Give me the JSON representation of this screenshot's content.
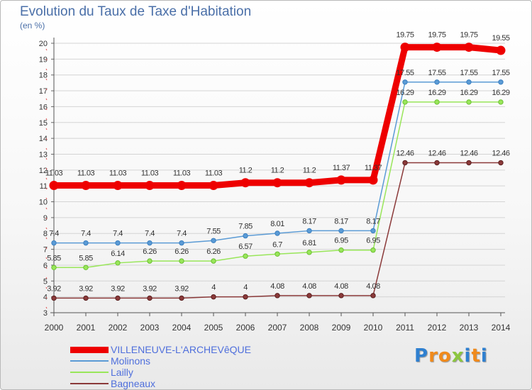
{
  "chart_data": {
    "type": "line",
    "title": "Evolution du Taux de Taxe d'Habitation",
    "ylabel": "(en %)",
    "x": [
      "2000",
      "2001",
      "2002",
      "2003",
      "2004",
      "2005",
      "2006",
      "2007",
      "2008",
      "2009",
      "2010",
      "2011",
      "2012",
      "2013",
      "2014"
    ],
    "ylim": [
      3,
      20
    ],
    "yticks": [
      "3",
      "4",
      "5",
      "6",
      "7",
      "8",
      "9",
      "10",
      "11",
      "12",
      "13",
      "14",
      "15",
      "16",
      "17",
      "18",
      "19",
      "20"
    ],
    "series": [
      {
        "name": "VILLENEUVE-L'ARCHEVêQUE",
        "color": "#ee0000",
        "values": [
          11.03,
          11.03,
          11.03,
          11.03,
          11.03,
          11.03,
          11.2,
          11.2,
          11.2,
          11.37,
          11.37,
          19.75,
          19.75,
          19.75,
          19.55
        ],
        "labels": [
          "11.03",
          "11.03",
          "11.03",
          "11.03",
          "11.03",
          "11.03",
          "11.2",
          "11.2",
          "11.2",
          "11.37",
          "11.37",
          "19.75",
          "19.75",
          "19.75",
          "19.55"
        ]
      },
      {
        "name": "Molinons",
        "color": "#5b9bd5",
        "values": [
          7.4,
          7.4,
          7.4,
          7.4,
          7.4,
          7.55,
          7.85,
          8.01,
          8.17,
          8.17,
          8.17,
          17.55,
          17.55,
          17.55,
          17.55
        ],
        "labels": [
          "7.4",
          "7.4",
          "7.4",
          "7.4",
          "7.4",
          "7.55",
          "7.85",
          "8.01",
          "8.17",
          "8.17",
          "8.17",
          "17.55",
          "17.55",
          "17.55",
          "17.55"
        ]
      },
      {
        "name": "Lailly",
        "color": "#99e65a",
        "values": [
          5.85,
          5.85,
          6.14,
          6.26,
          6.26,
          6.26,
          6.57,
          6.7,
          6.81,
          6.95,
          6.95,
          16.29,
          16.29,
          16.29,
          16.29
        ],
        "labels": [
          "5.85",
          "5.85",
          "6.14",
          "6.26",
          "6.26",
          "6.26",
          "6.57",
          "6.7",
          "6.81",
          "6.95",
          "6.95",
          "16.29",
          "16.29",
          "16.29",
          "16.29"
        ]
      },
      {
        "name": "Bagneaux",
        "color": "#8b3a3a",
        "values": [
          3.92,
          3.92,
          3.92,
          3.92,
          3.92,
          4,
          4,
          4.08,
          4.08,
          4.08,
          4.08,
          12.46,
          12.46,
          12.46,
          12.46
        ],
        "labels": [
          "3.92",
          "3.92",
          "3.92",
          "3.92",
          "3.92",
          "4",
          "4",
          "4.08",
          "4.08",
          "4.08",
          "4.08",
          "12.46",
          "12.46",
          "12.46",
          "12.46"
        ]
      }
    ]
  },
  "logo": {
    "letters": [
      "P",
      "r",
      "o",
      "x",
      "i",
      "t",
      "i"
    ],
    "colors": [
      "#2f80d0",
      "#f08a1c",
      "#f08a1c",
      "#8cc63f",
      "#2f80d0",
      "#f08a1c",
      "#2f80d0"
    ]
  }
}
